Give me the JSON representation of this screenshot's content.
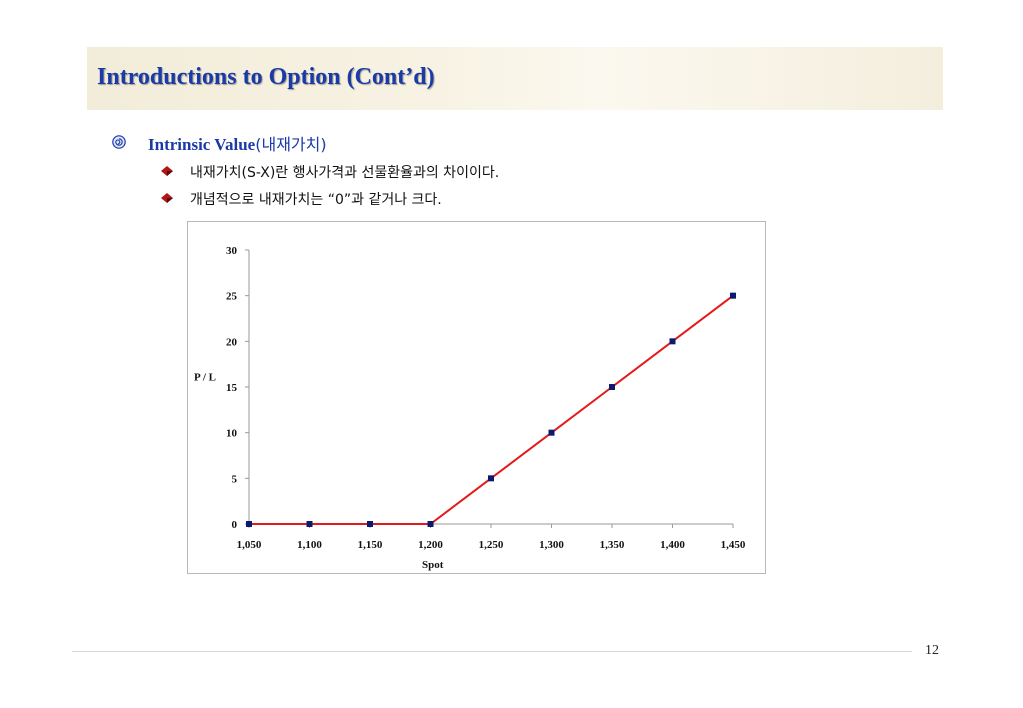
{
  "slide": {
    "title": "Introductions to Option (Cont’d)",
    "page_number": "12"
  },
  "bullet": {
    "heading_en": "Intrinsic Value",
    "heading_ko": "(내재가치)",
    "items": [
      "내재가치(S-X)란 행사가격과 선물환율과의 차이이다.",
      "개념적으로 내재가치는 “0”과 같거나 크다."
    ]
  },
  "colors": {
    "title": "#1a3aa8",
    "line": "#e41a1a",
    "marker": "#0b1a6e",
    "bullet_diamond": "#b01818"
  },
  "chart_data": {
    "type": "line",
    "x": [
      1050,
      1100,
      1150,
      1200,
      1250,
      1300,
      1350,
      1400,
      1450
    ],
    "categories": [
      "1,050",
      "1,100",
      "1,150",
      "1,200",
      "1,250",
      "1,300",
      "1,350",
      "1,400",
      "1,450"
    ],
    "series": [
      {
        "values": [
          0,
          0,
          0,
          0,
          5,
          10,
          15,
          20,
          25
        ]
      }
    ],
    "xlabel": "Spot",
    "ylabel": "P / L",
    "ylim": [
      0,
      30
    ],
    "yticks": [
      "0",
      "5",
      "10",
      "15",
      "20",
      "25",
      "30"
    ],
    "grid": false,
    "legend": false
  }
}
